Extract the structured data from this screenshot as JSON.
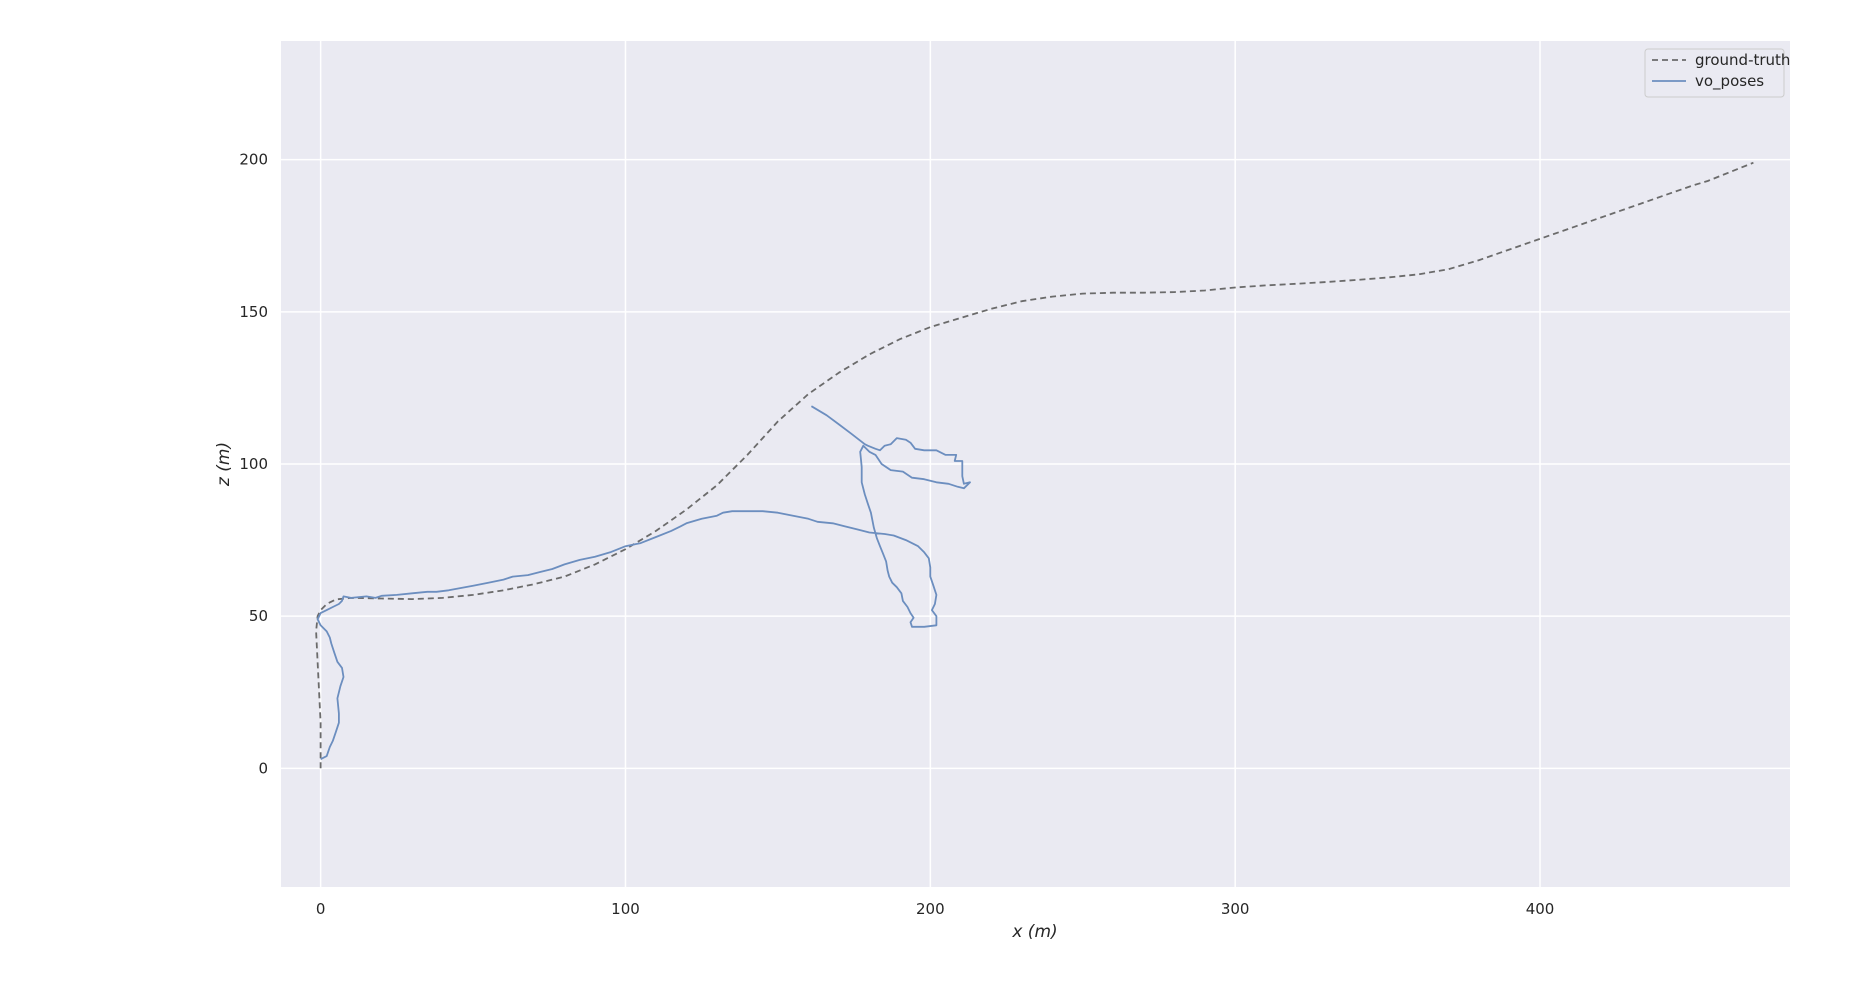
{
  "chart_data": {
    "type": "line",
    "title": "",
    "xlabel": "x (m)",
    "ylabel": "z (m)",
    "xlim": [
      -13,
      482
    ],
    "ylim": [
      -39,
      239
    ],
    "xticks": [
      0,
      100,
      200,
      300,
      400
    ],
    "yticks": [
      0,
      50,
      100,
      150,
      200
    ],
    "grid": true,
    "legend_position": "top-right",
    "colors": {
      "background": "#eaeaf2",
      "grid": "#ffffff",
      "ground_truth": "#6b6b6b",
      "vo_poses": "#6c8ebf"
    },
    "series": [
      {
        "name": "ground-truth",
        "style": "dashed",
        "points": [
          [
            0,
            0
          ],
          [
            0,
            5
          ],
          [
            0,
            15
          ],
          [
            -0.5,
            25
          ],
          [
            -1,
            35
          ],
          [
            -1.5,
            45
          ],
          [
            -1,
            50
          ],
          [
            0,
            52
          ],
          [
            2,
            54
          ],
          [
            5,
            55.5
          ],
          [
            10,
            56
          ],
          [
            20,
            55.8
          ],
          [
            30,
            55.6
          ],
          [
            40,
            56
          ],
          [
            50,
            57
          ],
          [
            60,
            58.5
          ],
          [
            70,
            60.5
          ],
          [
            80,
            63
          ],
          [
            90,
            67
          ],
          [
            100,
            72
          ],
          [
            110,
            78
          ],
          [
            120,
            85
          ],
          [
            130,
            93
          ],
          [
            140,
            103
          ],
          [
            150,
            114
          ],
          [
            160,
            123
          ],
          [
            170,
            130
          ],
          [
            180,
            136
          ],
          [
            190,
            141
          ],
          [
            200,
            145
          ],
          [
            210,
            148
          ],
          [
            220,
            151
          ],
          [
            230,
            153.5
          ],
          [
            240,
            155
          ],
          [
            250,
            156
          ],
          [
            260,
            156.3
          ],
          [
            270,
            156.3
          ],
          [
            280,
            156.5
          ],
          [
            290,
            157
          ],
          [
            300,
            158
          ],
          [
            310,
            158.7
          ],
          [
            320,
            159.2
          ],
          [
            330,
            159.8
          ],
          [
            340,
            160.5
          ],
          [
            350,
            161.3
          ],
          [
            360,
            162.3
          ],
          [
            370,
            164
          ],
          [
            380,
            167
          ],
          [
            390,
            170.5
          ],
          [
            400,
            174
          ],
          [
            410,
            177.5
          ],
          [
            420,
            181
          ],
          [
            430,
            184.5
          ],
          [
            440,
            188
          ],
          [
            450,
            191.5
          ],
          [
            455,
            193
          ],
          [
            460,
            195
          ],
          [
            465,
            197
          ],
          [
            470,
            199
          ]
        ]
      },
      {
        "name": "vo_poses",
        "style": "solid",
        "points": [
          [
            0,
            3
          ],
          [
            2,
            4
          ],
          [
            3,
            7
          ],
          [
            4,
            9
          ],
          [
            5,
            12
          ],
          [
            6,
            15
          ],
          [
            6,
            18
          ],
          [
            5.5,
            23
          ],
          [
            6.5,
            27
          ],
          [
            7.5,
            30
          ],
          [
            7,
            33
          ],
          [
            5.5,
            35
          ],
          [
            4.5,
            38
          ],
          [
            3.5,
            41
          ],
          [
            3,
            43
          ],
          [
            2,
            45
          ],
          [
            0,
            47
          ],
          [
            -1,
            49
          ],
          [
            0,
            51
          ],
          [
            2,
            52
          ],
          [
            4,
            53
          ],
          [
            6,
            54
          ],
          [
            7,
            55
          ],
          [
            7.5,
            56.5
          ],
          [
            10,
            56
          ],
          [
            15,
            56.5
          ],
          [
            18,
            56
          ],
          [
            20,
            56.7
          ],
          [
            25,
            57
          ],
          [
            30,
            57.5
          ],
          [
            35,
            58
          ],
          [
            38,
            58
          ],
          [
            42,
            58.5
          ],
          [
            50,
            60
          ],
          [
            55,
            61
          ],
          [
            60,
            62
          ],
          [
            63,
            63
          ],
          [
            68,
            63.5
          ],
          [
            72,
            64.5
          ],
          [
            76,
            65.5
          ],
          [
            80,
            67
          ],
          [
            85,
            68.5
          ],
          [
            90,
            69.5
          ],
          [
            95,
            71
          ],
          [
            100,
            73
          ],
          [
            105,
            74
          ],
          [
            110,
            76
          ],
          [
            115,
            78
          ],
          [
            118,
            79.5
          ],
          [
            120,
            80.5
          ],
          [
            125,
            82
          ],
          [
            130,
            83
          ],
          [
            132,
            84
          ],
          [
            135,
            84.5
          ],
          [
            140,
            84.5
          ],
          [
            145,
            84.5
          ],
          [
            150,
            84
          ],
          [
            155,
            83
          ],
          [
            160,
            82
          ],
          [
            163,
            81
          ],
          [
            168,
            80.5
          ],
          [
            172,
            79.5
          ],
          [
            176,
            78.5
          ],
          [
            180,
            77.5
          ],
          [
            185,
            77
          ],
          [
            188,
            76.5
          ],
          [
            192,
            75
          ],
          [
            196,
            73
          ],
          [
            198,
            71
          ],
          [
            199.5,
            69
          ],
          [
            200,
            66
          ],
          [
            200,
            63
          ],
          [
            201,
            60
          ],
          [
            202,
            57
          ],
          [
            201.5,
            54
          ],
          [
            200.5,
            52
          ],
          [
            202,
            50
          ],
          [
            202,
            47
          ],
          [
            198,
            46.5
          ],
          [
            194,
            46.5
          ],
          [
            193.5,
            48
          ],
          [
            194.5,
            49.5
          ],
          [
            193.5,
            51
          ],
          [
            192.5,
            53
          ],
          [
            191,
            55
          ],
          [
            190.5,
            57.5
          ],
          [
            189,
            59.5
          ],
          [
            187.5,
            61
          ],
          [
            186.5,
            63
          ],
          [
            186,
            65
          ],
          [
            185.5,
            68
          ],
          [
            184.5,
            70.5
          ],
          [
            183.5,
            73
          ],
          [
            182.5,
            75.5
          ],
          [
            181.5,
            79
          ],
          [
            180.5,
            84
          ],
          [
            179.5,
            87
          ],
          [
            178.5,
            90
          ],
          [
            177.5,
            94
          ],
          [
            177.5,
            99
          ],
          [
            177,
            104
          ],
          [
            178,
            106
          ],
          [
            180,
            104
          ],
          [
            182,
            103
          ],
          [
            184,
            100
          ],
          [
            187,
            98
          ],
          [
            191,
            97.5
          ],
          [
            194,
            95.5
          ],
          [
            198,
            95
          ],
          [
            202,
            94
          ],
          [
            206,
            93.5
          ],
          [
            209,
            92.5
          ],
          [
            211,
            92
          ],
          [
            213,
            94
          ],
          [
            211,
            93.5
          ],
          [
            210.5,
            96
          ],
          [
            210.5,
            99
          ],
          [
            210.5,
            101
          ],
          [
            208,
            101
          ],
          [
            208.5,
            103
          ],
          [
            205,
            103
          ],
          [
            202,
            104.5
          ],
          [
            198,
            104.5
          ],
          [
            195,
            105
          ],
          [
            193.5,
            107
          ],
          [
            192,
            108
          ],
          [
            189,
            108.5
          ],
          [
            187,
            106.5
          ],
          [
            185,
            106
          ],
          [
            183.5,
            104.5
          ],
          [
            182,
            105
          ],
          [
            179.5,
            106
          ],
          [
            178.5,
            106.5
          ],
          [
            174,
            110
          ],
          [
            170,
            113
          ],
          [
            166,
            116
          ],
          [
            161,
            119
          ]
        ]
      }
    ]
  }
}
